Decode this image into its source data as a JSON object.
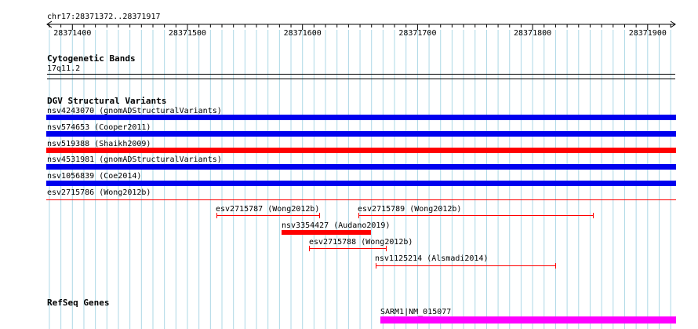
{
  "region": "chr17:28371372..28371917",
  "ruler": {
    "ticks": [
      "28371400",
      "28371500",
      "28371600",
      "28371700",
      "28371800",
      "28371900"
    ]
  },
  "tracks": {
    "cytoband": {
      "title": "Cytogenetic Bands",
      "band": "17q11.2"
    },
    "dgv": {
      "title": "DGV Structural Variants",
      "full_width": [
        {
          "label": "nsv4243070 (gnomADStructuralVariants)",
          "color": "#0000ee"
        },
        {
          "label": "nsv574653 (Cooper2011)",
          "color": "#0000ee"
        },
        {
          "label": "nsv519388 (Shaikh2009)",
          "color": "#ff0000"
        },
        {
          "label": "nsv4531981 (gnomADStructuralVariants)",
          "color": "#0000ee"
        },
        {
          "label": "nsv1056839 (Coe2014)",
          "color": "#0000ee"
        },
        {
          "label": "esv2715786 (Wong2012b)",
          "color": "#ff0000"
        }
      ],
      "partial": [
        {
          "label": "esv2715787 (Wong2012b)",
          "color": "#ff0000"
        },
        {
          "label": "esv2715789 (Wong2012b)",
          "color": "#ff0000"
        },
        {
          "label": "nsv3354427 (Audano2019)",
          "color": "#ff0000"
        },
        {
          "label": "esv2715788 (Wong2012b)",
          "color": "#ff0000"
        },
        {
          "label": "nsv1125214 (Alsmadi2014)",
          "color": "#ff0000"
        }
      ]
    },
    "refseq": {
      "title": "RefSeq Genes",
      "gene_label": "SARM1|NM_015077",
      "color": "#ff00ff"
    }
  },
  "colors": {
    "grid": "#add8e6",
    "axis": "#000000"
  }
}
